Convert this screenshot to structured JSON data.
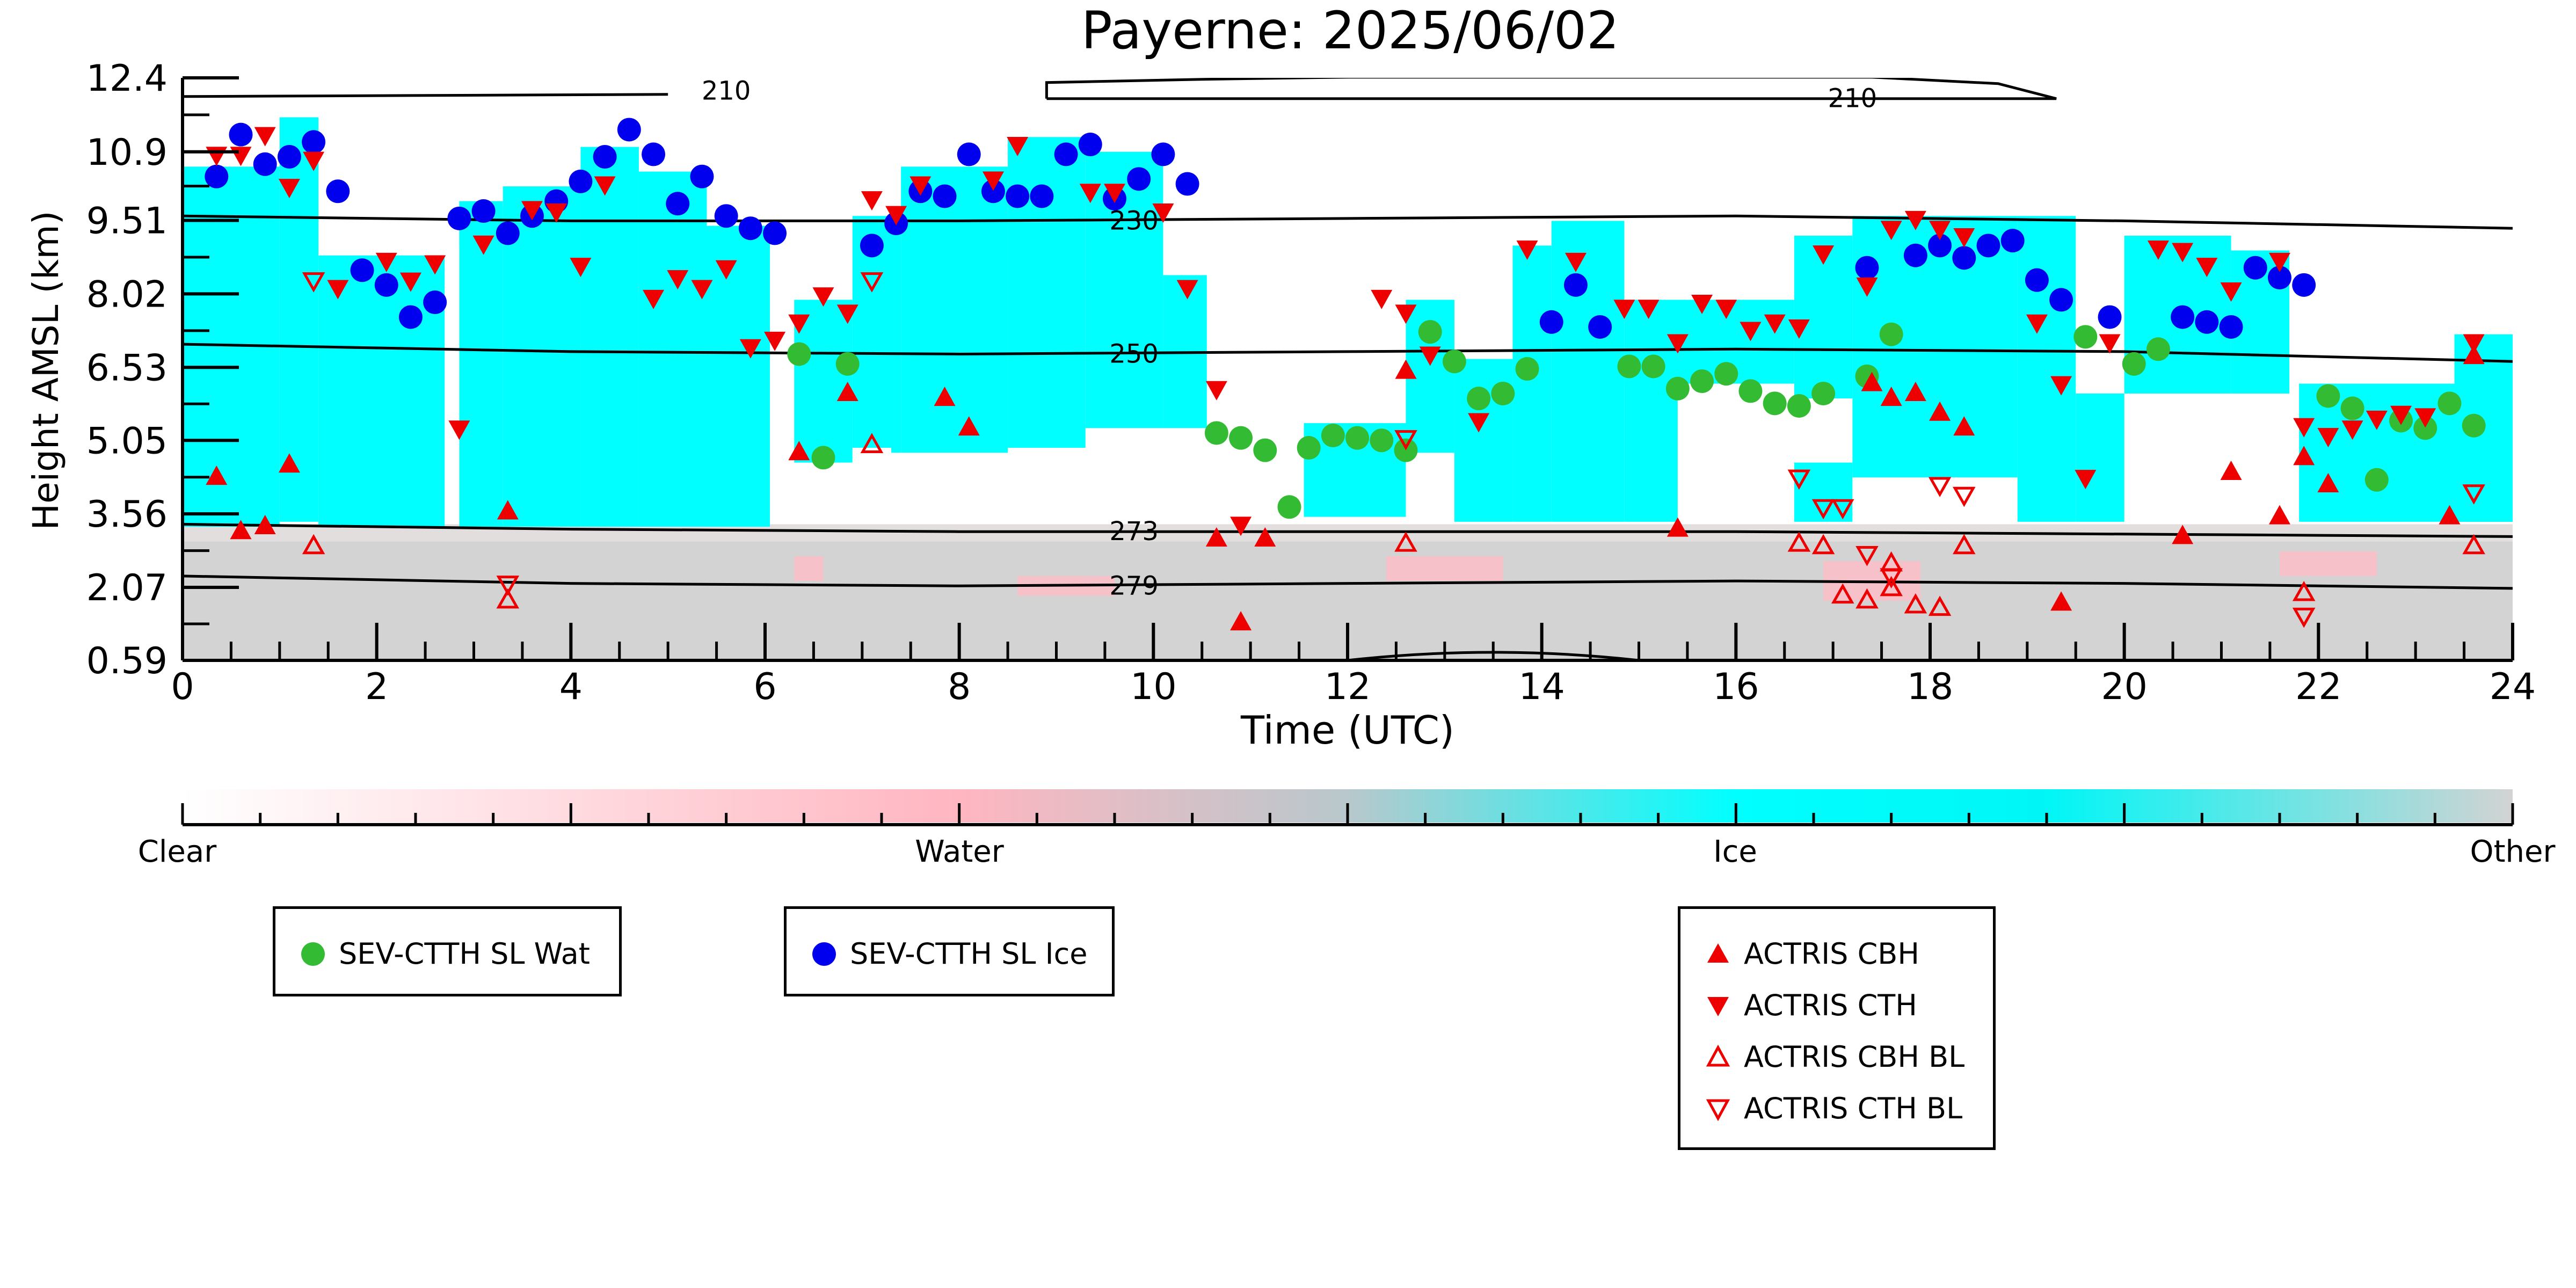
{
  "chart_data": {
    "type": "scatter",
    "title": "Payerne: 2025/06/02",
    "xlabel": "Time (UTC)",
    "ylabel": "Height AMSL (km)",
    "xlim": [
      0,
      24
    ],
    "ylim": [
      0.59,
      12.4
    ],
    "xticks": [
      0,
      2,
      4,
      6,
      8,
      10,
      12,
      14,
      16,
      18,
      20,
      22,
      24
    ],
    "yticks": [
      0.59,
      2.07,
      3.56,
      5.05,
      6.53,
      8.02,
      9.51,
      10.9,
      12.4
    ],
    "ytick_labels": [
      "0.59",
      "2.07",
      "3.56",
      "5.05",
      "6.53",
      "8.02",
      "9.51",
      "10.9",
      "12.4"
    ],
    "colorbar": {
      "labels": [
        "Clear",
        "Water",
        "Ice",
        "Other"
      ],
      "colors": [
        "#ffffff",
        "#ffb6c1",
        "#00ffff",
        "#d3d3d3"
      ]
    },
    "contours": [
      {
        "label": "279",
        "x": [
          0,
          4,
          8,
          12,
          16,
          20,
          24
        ],
        "y": [
          2.3,
          2.15,
          2.1,
          2.15,
          2.2,
          2.15,
          2.05
        ]
      },
      {
        "label": "273",
        "x": [
          0,
          4,
          8,
          12,
          16,
          20,
          24
        ],
        "y": [
          3.35,
          3.25,
          3.2,
          3.2,
          3.2,
          3.15,
          3.1
        ]
      },
      {
        "label": "250",
        "x": [
          0,
          4,
          8,
          12,
          16,
          20,
          24
        ],
        "y": [
          7.0,
          6.85,
          6.8,
          6.85,
          6.9,
          6.85,
          6.65
        ]
      },
      {
        "label": "230",
        "x": [
          0,
          4,
          8,
          12,
          16,
          20,
          24
        ],
        "y": [
          9.6,
          9.5,
          9.5,
          9.55,
          9.6,
          9.5,
          9.35
        ]
      }
    ],
    "series": [
      {
        "name": "SEV-CTTH SL Wat",
        "color": "#33bb33",
        "marker": "circle",
        "x": [
          6.35,
          6.6,
          6.85,
          10.65,
          10.9,
          11.15,
          11.4,
          11.6,
          11.85,
          12.1,
          12.35,
          12.6,
          12.85,
          13.1,
          13.35,
          13.6,
          13.85,
          14.9,
          15.15,
          15.4,
          15.65,
          15.9,
          16.15,
          16.4,
          16.65,
          16.9,
          17.35,
          17.6,
          19.6,
          20.1,
          20.35,
          22.1,
          22.35,
          22.6,
          22.85,
          23.1,
          23.35,
          23.6
        ],
        "y": [
          6.8,
          4.7,
          6.6,
          5.2,
          5.1,
          4.85,
          3.7,
          4.9,
          5.15,
          5.1,
          5.05,
          4.85,
          7.25,
          6.65,
          5.9,
          6.0,
          6.5,
          6.55,
          6.55,
          6.1,
          6.25,
          6.4,
          6.05,
          5.8,
          5.75,
          6.0,
          6.35,
          7.2,
          7.15,
          6.6,
          6.9,
          5.95,
          5.7,
          4.25,
          5.45,
          5.3,
          5.8,
          5.35
        ]
      },
      {
        "name": "SEV-CTTH SL Ice",
        "color": "#0000ee",
        "marker": "circle",
        "x": [
          0.35,
          0.6,
          0.85,
          1.1,
          1.35,
          1.6,
          1.85,
          2.1,
          2.35,
          2.6,
          2.85,
          3.1,
          3.35,
          3.6,
          3.85,
          4.1,
          4.35,
          4.6,
          4.85,
          5.1,
          5.35,
          5.6,
          5.85,
          6.1,
          7.1,
          7.35,
          7.6,
          7.85,
          8.1,
          8.35,
          8.6,
          8.85,
          9.1,
          9.35,
          9.6,
          9.85,
          10.1,
          10.35,
          14.1,
          14.35,
          14.6,
          17.35,
          17.85,
          18.1,
          18.35,
          18.6,
          18.85,
          19.1,
          19.35,
          19.85,
          20.6,
          20.85,
          21.1,
          21.35,
          21.6,
          21.85
        ],
        "y": [
          10.4,
          11.25,
          10.65,
          10.8,
          11.1,
          10.1,
          8.5,
          8.2,
          7.55,
          7.85,
          9.55,
          9.7,
          9.25,
          9.6,
          9.9,
          10.3,
          10.8,
          11.35,
          10.85,
          9.85,
          10.4,
          9.6,
          9.35,
          9.25,
          9.0,
          9.45,
          10.1,
          10.0,
          10.85,
          10.1,
          10.0,
          10.0,
          10.85,
          11.05,
          9.95,
          10.35,
          10.85,
          10.25,
          7.45,
          8.2,
          7.35,
          8.55,
          8.8,
          9.0,
          8.75,
          9.0,
          9.1,
          8.3,
          7.9,
          7.55,
          7.55,
          7.45,
          7.35,
          8.55,
          8.35,
          8.2
        ]
      },
      {
        "name": "ACTRIS CBH",
        "color": "#ee0000",
        "marker": "triangle-up",
        "x": [
          0.35,
          0.6,
          0.85,
          1.1,
          3.35,
          6.35,
          6.85,
          7.85,
          8.1,
          10.65,
          10.9,
          11.15,
          12.6,
          15.4,
          17.4,
          17.6,
          17.85,
          18.1,
          18.35,
          19.35,
          20.6,
          21.1,
          21.6,
          21.85,
          22.1,
          23.35,
          23.6
        ],
        "y": [
          4.3,
          3.2,
          3.3,
          4.55,
          3.6,
          4.8,
          6.0,
          5.9,
          5.3,
          3.05,
          1.35,
          3.05,
          6.45,
          3.25,
          6.2,
          5.9,
          6.0,
          5.6,
          5.3,
          1.75,
          3.1,
          4.4,
          3.5,
          4.7,
          4.15,
          3.5,
          6.75
        ]
      },
      {
        "name": "ACTRIS CTH",
        "color": "#ee0000",
        "marker": "triangle-down",
        "x": [
          0.35,
          0.6,
          0.85,
          1.1,
          1.35,
          1.6,
          2.1,
          2.35,
          2.6,
          2.85,
          3.1,
          3.6,
          3.85,
          4.1,
          4.35,
          4.85,
          5.1,
          5.35,
          5.6,
          5.85,
          6.1,
          6.35,
          6.6,
          6.85,
          7.1,
          7.35,
          7.6,
          8.35,
          8.6,
          9.35,
          9.6,
          10.1,
          10.35,
          10.65,
          10.9,
          12.35,
          12.6,
          12.85,
          13.35,
          13.85,
          14.35,
          14.85,
          15.1,
          15.4,
          15.65,
          15.9,
          16.15,
          16.4,
          16.65,
          16.9,
          17.35,
          17.6,
          17.85,
          18.1,
          18.35,
          19.1,
          19.35,
          19.6,
          19.85,
          20.35,
          20.6,
          20.85,
          21.1,
          21.6,
          21.85,
          22.1,
          22.35,
          22.6,
          22.85,
          23.1,
          23.6
        ],
        "y": [
          10.85,
          10.85,
          11.25,
          10.2,
          10.75,
          8.15,
          8.7,
          8.3,
          8.65,
          5.3,
          9.05,
          9.75,
          9.7,
          8.6,
          10.25,
          7.95,
          8.35,
          8.15,
          8.55,
          6.95,
          7.1,
          7.45,
          8.0,
          7.65,
          9.95,
          9.65,
          10.25,
          10.35,
          11.05,
          10.1,
          10.1,
          9.7,
          8.15,
          6.1,
          3.35,
          7.95,
          7.65,
          6.8,
          5.45,
          8.95,
          8.7,
          7.75,
          7.75,
          7.05,
          7.85,
          7.75,
          7.3,
          7.45,
          7.35,
          8.85,
          8.2,
          9.35,
          9.55,
          9.35,
          9.2,
          7.45,
          6.2,
          4.3,
          7.05,
          8.95,
          8.9,
          8.6,
          8.1,
          8.7,
          5.35,
          5.15,
          5.3,
          5.5,
          5.6,
          5.55,
          7.05
        ]
      },
      {
        "name": "ACTRIS CBH BL",
        "color": "#ee0000",
        "marker": "triangle-up-open",
        "x": [
          1.35,
          3.35,
          7.1,
          12.6,
          16.65,
          16.9,
          17.1,
          17.35,
          17.6,
          17.6,
          17.85,
          18.1,
          18.35,
          21.85,
          23.6
        ],
        "y": [
          2.9,
          1.8,
          4.95,
          2.95,
          2.95,
          2.9,
          1.9,
          1.8,
          2.05,
          2.55,
          1.7,
          1.65,
          2.9,
          1.95,
          2.9
        ]
      },
      {
        "name": "ACTRIS CTH BL",
        "color": "#ee0000",
        "marker": "triangle-down-open",
        "x": [
          1.35,
          3.35,
          7.1,
          12.6,
          16.65,
          16.9,
          17.1,
          17.35,
          17.6,
          18.1,
          18.35,
          21.85,
          23.6
        ],
        "y": [
          8.3,
          2.15,
          8.3,
          5.1,
          4.3,
          3.7,
          3.7,
          2.75,
          2.3,
          4.15,
          3.95,
          1.5,
          4.0
        ]
      }
    ]
  },
  "ui": {
    "contour_extra_label": "210",
    "legends": [
      {
        "items": [
          "SEV-CTTH SL Wat"
        ]
      },
      {
        "items": [
          "SEV-CTTH SL Ice"
        ]
      },
      {
        "items": [
          "ACTRIS CBH",
          "ACTRIS CTH",
          "ACTRIS CBH BL",
          "ACTRIS CTH BL"
        ]
      }
    ]
  }
}
